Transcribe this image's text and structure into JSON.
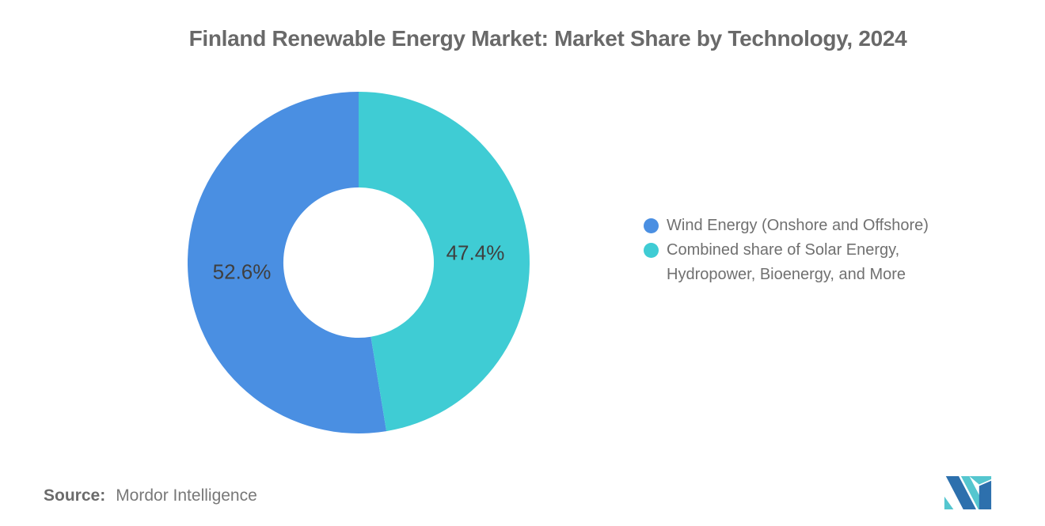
{
  "page": {
    "background": "#ffffff"
  },
  "chart_data": {
    "type": "pie",
    "subtype": "donut",
    "title": "Finland Renewable Energy Market: Market Share by Technology, 2024",
    "series": [
      {
        "name": "Wind Energy (Onshore and Offshore)",
        "value": 52.6,
        "display_label": "52.6%",
        "color": "#4a8fe2"
      },
      {
        "name": "Combined share of Solar Energy, Hydropower, Bioenergy, and More",
        "value": 47.4,
        "display_label": "47.4%",
        "color": "#3fccd4"
      }
    ],
    "units": "percent",
    "legend_position": "right",
    "grid": false,
    "inner_radius_ratio": 0.44,
    "start_angle_deg": 170.64,
    "direction": "clockwise",
    "slice_label_color": "#3f3f3f",
    "slice_label_radius_ratio": 0.685
  },
  "source": {
    "label": "Source:",
    "value": "Mordor Intelligence"
  },
  "logo": {
    "name": "mordor-intelligence-logo",
    "blue": "#2d70ad",
    "teal": "#55c6cf"
  }
}
